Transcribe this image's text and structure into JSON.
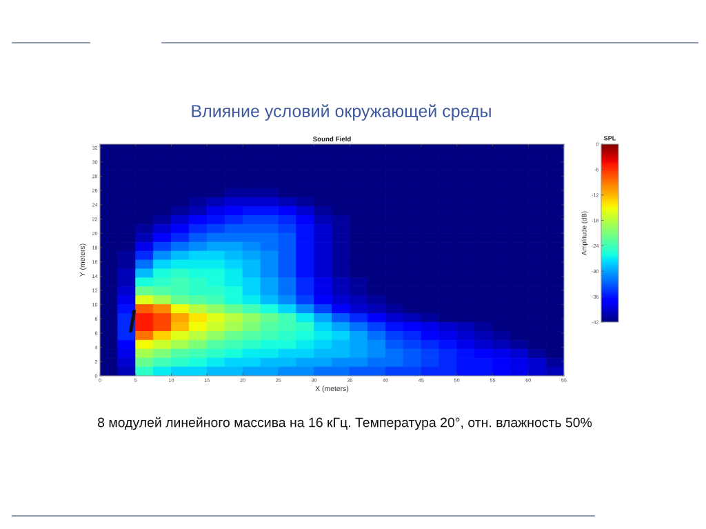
{
  "chart_data": {
    "type": "heatmap",
    "title": "Влияние условий окружающей среды",
    "subtitle": "Sound Field",
    "xlabel": "X (meters)",
    "ylabel": "Y (meters)",
    "clabel": "Amplitude (dB)",
    "legend_title": "SPL",
    "annotations": [
      "8 модулей линейного массива на 16 кГц. Температура 20°, отн. влажность 50%"
    ],
    "x": [
      1.25,
      3.75,
      6.25,
      8.75,
      11.25,
      13.75,
      16.25,
      18.75,
      21.25,
      23.75,
      26.25,
      28.75,
      31.25,
      33.75,
      36.25,
      38.75,
      41.25,
      43.75,
      46.25,
      48.75,
      51.25,
      53.75,
      56.25,
      58.75,
      61.25,
      63.75
    ],
    "xlim": [
      0,
      65
    ],
    "ylim": [
      0,
      32.5
    ],
    "xticks": [
      0,
      5,
      10,
      15,
      20,
      25,
      30,
      35,
      40,
      45,
      50,
      55,
      60,
      65
    ],
    "yticks": [
      0,
      2,
      4,
      6,
      8,
      10,
      12,
      14,
      16,
      18,
      20,
      22,
      24,
      26,
      28,
      30,
      32
    ],
    "clim": [
      -42,
      0
    ],
    "cticks": [
      0,
      -6,
      -12,
      -18,
      -24,
      -30,
      -36,
      -42
    ],
    "cells": [
      [
        -42,
        -42,
        -42,
        -42,
        -42,
        -42,
        -42,
        -42,
        -42,
        -42,
        -42,
        -42,
        -42,
        -42,
        -42,
        -42,
        -42,
        -42,
        -42,
        -42,
        -42,
        -42,
        -42,
        -42,
        -42,
        -42
      ],
      [
        -42,
        -42,
        -42,
        -42,
        -42,
        -42,
        -42,
        -42,
        -42,
        -42,
        -42,
        -42,
        -42,
        -42,
        -42,
        -42,
        -42,
        -42,
        -42,
        -42,
        -42,
        -42,
        -42,
        -42,
        -42,
        -42
      ],
      [
        -42,
        -42,
        -42,
        -42,
        -42,
        -42,
        -42,
        -42,
        -42,
        -42,
        -42,
        -42,
        -42,
        -42,
        -42,
        -42,
        -42,
        -42,
        -42,
        -42,
        -42,
        -42,
        -42,
        -42,
        -42,
        -42
      ],
      [
        -42,
        -42,
        -42,
        -42,
        -42,
        -42,
        -42,
        -42,
        -42,
        -42,
        -42,
        -42,
        -42,
        -42,
        -42,
        -42,
        -42,
        -42,
        -42,
        -42,
        -42,
        -42,
        -42,
        -42,
        -42,
        -42
      ],
      [
        -42,
        -42,
        -42,
        -42,
        -42,
        -42,
        -42,
        -42,
        -42,
        -42,
        -42,
        -42,
        -42,
        -42,
        -42,
        -42,
        -42,
        -42,
        -42,
        -42,
        -42,
        -42,
        -42,
        -42,
        -42,
        -42
      ],
      [
        -42,
        -42,
        -42,
        -42,
        -42,
        -42,
        -42,
        -41,
        -41,
        -41,
        -42,
        -42,
        -42,
        -42,
        -42,
        -42,
        -42,
        -42,
        -42,
        -42,
        -42,
        -42,
        -42,
        -42,
        -42,
        -42
      ],
      [
        -42,
        -42,
        -42,
        -42,
        -42,
        -41,
        -40,
        -39,
        -39,
        -39,
        -40,
        -41,
        -42,
        -42,
        -42,
        -42,
        -42,
        -42,
        -42,
        -42,
        -42,
        -42,
        -42,
        -42,
        -42,
        -42
      ],
      [
        -42,
        -42,
        -42,
        -42,
        -41,
        -40,
        -38,
        -37,
        -36,
        -36,
        -37,
        -39,
        -41,
        -42,
        -42,
        -42,
        -42,
        -42,
        -42,
        -42,
        -42,
        -42,
        -42,
        -42,
        -42,
        -42
      ],
      [
        -42,
        -42,
        -42,
        -41,
        -39,
        -37,
        -36,
        -35,
        -34,
        -34,
        -35,
        -37,
        -40,
        -41,
        -42,
        -42,
        -42,
        -42,
        -42,
        -42,
        -42,
        -42,
        -42,
        -42,
        -42,
        -42
      ],
      [
        -42,
        -42,
        -41,
        -39,
        -37,
        -35,
        -34,
        -33,
        -33,
        -33,
        -34,
        -36,
        -39,
        -41,
        -42,
        -42,
        -42,
        -42,
        -42,
        -42,
        -42,
        -42,
        -42,
        -42,
        -42,
        -42
      ],
      [
        -42,
        -42,
        -40,
        -37,
        -35,
        -33,
        -32,
        -32,
        -32,
        -32,
        -33,
        -36,
        -39,
        -41,
        -42,
        -42,
        -42,
        -42,
        -42,
        -42,
        -42,
        -42,
        -42,
        -42,
        -42,
        -42
      ],
      [
        -42,
        -42,
        -38,
        -34,
        -32,
        -31,
        -30,
        -30,
        -31,
        -32,
        -33,
        -36,
        -39,
        -41,
        -42,
        -42,
        -42,
        -42,
        -42,
        -42,
        -42,
        -42,
        -42,
        -42,
        -42,
        -42
      ],
      [
        -42,
        -41,
        -35,
        -31,
        -29,
        -28,
        -28,
        -29,
        -30,
        -31,
        -33,
        -36,
        -39,
        -41,
        -42,
        -42,
        -42,
        -42,
        -42,
        -42,
        -42,
        -42,
        -42,
        -42,
        -42,
        -42
      ],
      [
        -42,
        -41,
        -32,
        -28,
        -27,
        -27,
        -27,
        -28,
        -29,
        -31,
        -33,
        -36,
        -39,
        -41,
        -42,
        -42,
        -42,
        -42,
        -42,
        -42,
        -42,
        -42,
        -42,
        -42,
        -42,
        -42
      ],
      [
        -42,
        -40,
        -29,
        -26,
        -25,
        -26,
        -26,
        -27,
        -29,
        -31,
        -33,
        -36,
        -39,
        -41,
        -42,
        -42,
        -42,
        -42,
        -42,
        -42,
        -42,
        -42,
        -42,
        -42,
        -42,
        -42
      ],
      [
        -42,
        -40,
        -26,
        -25,
        -24,
        -25,
        -26,
        -27,
        -28,
        -30,
        -32,
        -35,
        -38,
        -40,
        -41,
        -42,
        -42,
        -42,
        -42,
        -42,
        -42,
        -42,
        -42,
        -42,
        -42,
        -42
      ],
      [
        -42,
        -39,
        -22,
        -23,
        -24,
        -25,
        -25,
        -26,
        -28,
        -30,
        -32,
        -35,
        -38,
        -40,
        -41,
        -42,
        -42,
        -42,
        -42,
        -42,
        -42,
        -42,
        -42,
        -42,
        -42,
        -42
      ],
      [
        -42,
        -38,
        -16,
        -19,
        -22,
        -23,
        -24,
        -26,
        -27,
        -29,
        -31,
        -34,
        -37,
        -39,
        -40,
        -41,
        -42,
        -42,
        -42,
        -42,
        -42,
        -42,
        -42,
        -42,
        -42,
        -42
      ],
      [
        -42,
        -36,
        -8,
        -10,
        -15,
        -18,
        -20,
        -22,
        -24,
        -26,
        -28,
        -31,
        -34,
        -37,
        -39,
        -40,
        -41,
        -42,
        -42,
        -42,
        -42,
        -42,
        -42,
        -42,
        -42,
        -42
      ],
      [
        -42,
        -35,
        -5,
        -7,
        -11,
        -14,
        -16,
        -18,
        -20,
        -22,
        -24,
        -27,
        -30,
        -33,
        -35,
        -37,
        -39,
        -40,
        -41,
        -42,
        -42,
        -42,
        -42,
        -42,
        -42,
        -42
      ],
      [
        -42,
        -35,
        -5,
        -7,
        -12,
        -15,
        -17,
        -19,
        -21,
        -23,
        -24,
        -25,
        -28,
        -30,
        -32,
        -34,
        -36,
        -37,
        -38,
        -39,
        -40,
        -41,
        -42,
        -42,
        -42,
        -42
      ],
      [
        -42,
        -35,
        -9,
        -13,
        -16,
        -18,
        -20,
        -22,
        -23,
        -24,
        -25,
        -26,
        -27,
        -28,
        -30,
        -32,
        -34,
        -35,
        -37,
        -38,
        -39,
        -40,
        -41,
        -42,
        -42,
        -42
      ],
      [
        -42,
        -37,
        -15,
        -17,
        -19,
        -21,
        -23,
        -24,
        -25,
        -26,
        -26,
        -27,
        -28,
        -29,
        -30,
        -31,
        -33,
        -34,
        -35,
        -36,
        -38,
        -39,
        -40,
        -41,
        -42,
        -42
      ],
      [
        -42,
        -38,
        -19,
        -21,
        -23,
        -24,
        -25,
        -26,
        -27,
        -27,
        -28,
        -28,
        -29,
        -29,
        -30,
        -31,
        -32,
        -33,
        -34,
        -35,
        -36,
        -37,
        -38,
        -39,
        -41,
        -42
      ],
      [
        -42,
        -39,
        -22,
        -24,
        -25,
        -26,
        -27,
        -28,
        -28,
        -29,
        -29,
        -30,
        -30,
        -31,
        -31,
        -32,
        -32,
        -33,
        -34,
        -35,
        -36,
        -36,
        -37,
        -38,
        -39,
        -41
      ],
      [
        -42,
        -40,
        -25,
        -27,
        -28,
        -28,
        -29,
        -29,
        -30,
        -30,
        -31,
        -31,
        -32,
        -32,
        -33,
        -33,
        -34,
        -34,
        -35,
        -35,
        -36,
        -36,
        -37,
        -38,
        -39,
        -40
      ]
    ]
  }
}
